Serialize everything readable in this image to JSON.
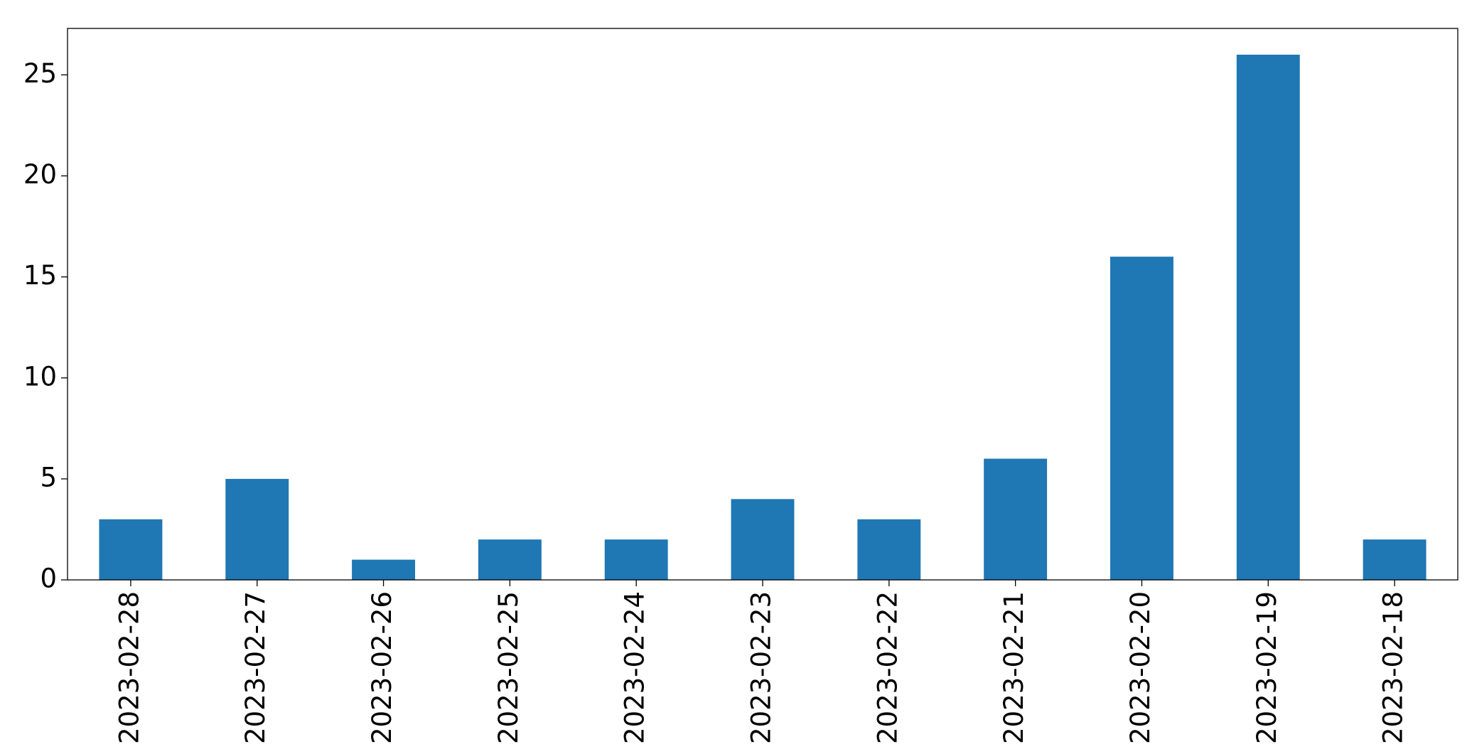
{
  "chart_data": {
    "type": "bar",
    "categories": [
      "2023-02-28",
      "2023-02-27",
      "2023-02-26",
      "2023-02-25",
      "2023-02-24",
      "2023-02-23",
      "2023-02-22",
      "2023-02-21",
      "2023-02-20",
      "2023-02-19",
      "2023-02-18"
    ],
    "values": [
      3,
      5,
      1,
      2,
      2,
      4,
      3,
      6,
      16,
      26,
      2
    ],
    "color": "#1f77b4",
    "ylim": [
      0,
      27.3
    ],
    "yticks": [
      0,
      5,
      10,
      15,
      20,
      25
    ],
    "grid": false
  }
}
